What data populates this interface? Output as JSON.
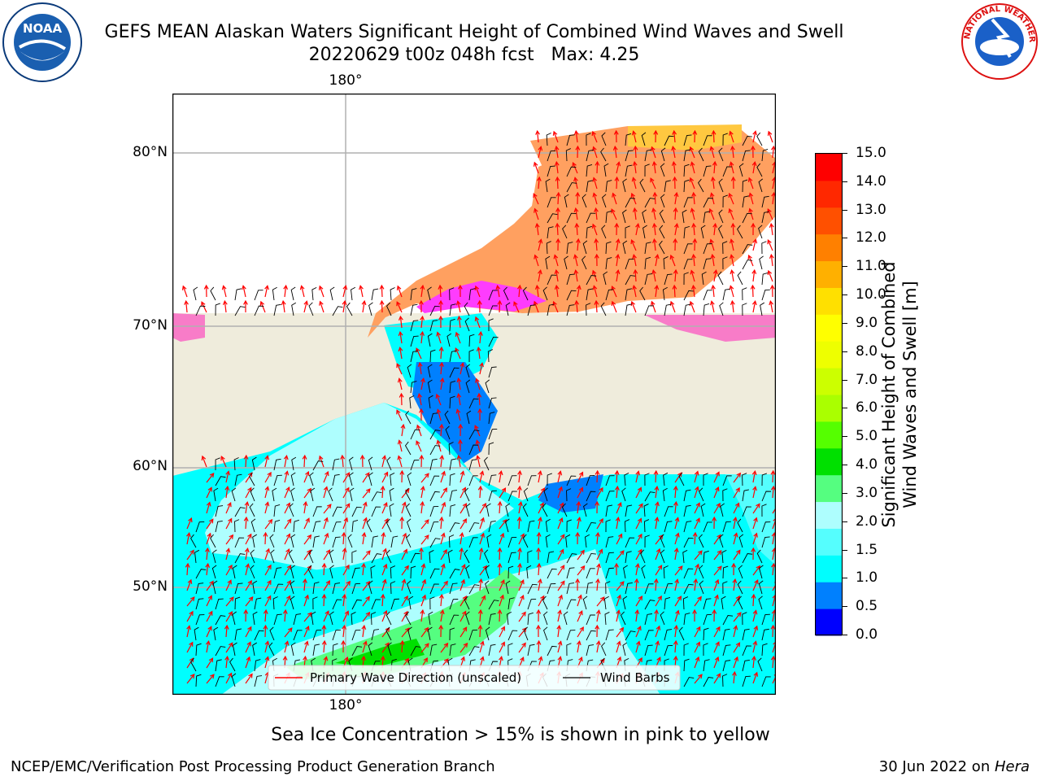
{
  "title": {
    "line1": "GEFS MEAN Alaskan Waters Significant Height of Combined Wind Waves and Swell",
    "line2": "20220629 t00z 048h fcst   Max: 4.25"
  },
  "logos": {
    "left": {
      "text": "NOAA",
      "icon": "noaa-logo"
    },
    "right": {
      "text": "NATIONAL WEATHER SERVICE",
      "icon": "nws-logo"
    }
  },
  "map": {
    "lat_labels": [
      "80°N",
      "70°N",
      "60°N",
      "50°N"
    ],
    "lon_label_top": "180°",
    "lon_label_bottom": "180°",
    "colors": {
      "land": "#efecdc",
      "ocean_light": "#aefefe",
      "ocean_mid": "#00fefe",
      "ocean_shallow": "#55fefe",
      "ocean_calm": "#0080fe",
      "ocean_very_calm": "#0000fe",
      "swell_green": "#55fe80",
      "swell_darkgreen": "#00e000",
      "ice_pink": "#f87cc8",
      "ice_magenta": "#fe3cfe",
      "ice_orange": "#ffa060",
      "ice_yellow": "#ffc840",
      "grid": "#b0b0b0",
      "arrow": "#ff0000"
    }
  },
  "legend": {
    "wave_label": "Primary Wave Direction (unscaled)",
    "wind_label": "Wind Barbs"
  },
  "colorbar": {
    "label_line1": "Significant Height of Combined",
    "label_line2": "Wind Waves and Swell [m]",
    "ticks": [
      "15.0",
      "14.0",
      "13.0",
      "12.0",
      "11.0",
      "10.0",
      "9.0",
      "8.0",
      "7.0",
      "6.0",
      "5.0",
      "4.0",
      "3.0",
      "2.0",
      "1.5",
      "1.0",
      "0.5",
      "0.0"
    ],
    "colors": [
      "#0000fe",
      "#0080fe",
      "#00fefe",
      "#55fefe",
      "#aefefe",
      "#55fe80",
      "#00e000",
      "#55ff00",
      "#aaff00",
      "#ccff00",
      "#eeff00",
      "#ffff00",
      "#ffe000",
      "#ffb000",
      "#ff8000",
      "#ff5000",
      "#ff2800",
      "#fe0000"
    ]
  },
  "ice_note": "Sea Ice Concentration > 15% is shown in pink to yellow",
  "footer": {
    "left": "NCEP/EMC/Verification Post Processing Product Generation Branch",
    "right_date": "30 Jun 2022 on ",
    "right_host": "Hera"
  }
}
